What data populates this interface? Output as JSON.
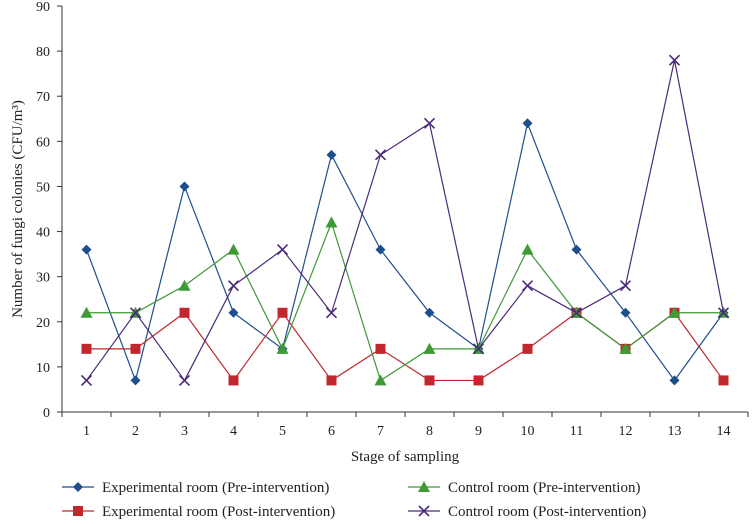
{
  "chart_data": {
    "type": "line",
    "title": "",
    "xlabel": "Stage of sampling",
    "ylabel": "Number of fungi colonies (CFU/m³)",
    "ylim": [
      0,
      90
    ],
    "yticks": [
      0,
      10,
      20,
      30,
      40,
      50,
      60,
      70,
      80,
      90
    ],
    "categories": [
      "1",
      "2",
      "3",
      "4",
      "5",
      "6",
      "7",
      "8",
      "9",
      "10",
      "11",
      "12",
      "13",
      "14"
    ],
    "grid": false,
    "legend_position": "bottom",
    "series": [
      {
        "name": "Experimental room (Pre-intervention)",
        "color": "#1f4e8c",
        "marker": "diamond",
        "values": [
          36,
          7,
          50,
          22,
          14,
          57,
          36,
          22,
          14,
          64,
          36,
          22,
          7,
          22
        ]
      },
      {
        "name": "Experimental room (Post-intervention)",
        "color": "#c0282d",
        "marker": "square",
        "values": [
          14,
          14,
          22,
          7,
          22,
          7,
          14,
          7,
          7,
          14,
          22,
          14,
          22,
          7
        ]
      },
      {
        "name": "Control room (Pre-intervention)",
        "color": "#3e9a35",
        "marker": "triangle",
        "values": [
          22,
          22,
          28,
          36,
          14,
          42,
          7,
          14,
          14,
          36,
          22,
          14,
          22,
          22
        ]
      },
      {
        "name": "Control room (Post-intervention)",
        "color": "#4b2a7a",
        "marker": "x",
        "values": [
          7,
          22,
          7,
          28,
          36,
          22,
          57,
          64,
          14,
          28,
          22,
          28,
          78,
          22
        ]
      }
    ]
  }
}
